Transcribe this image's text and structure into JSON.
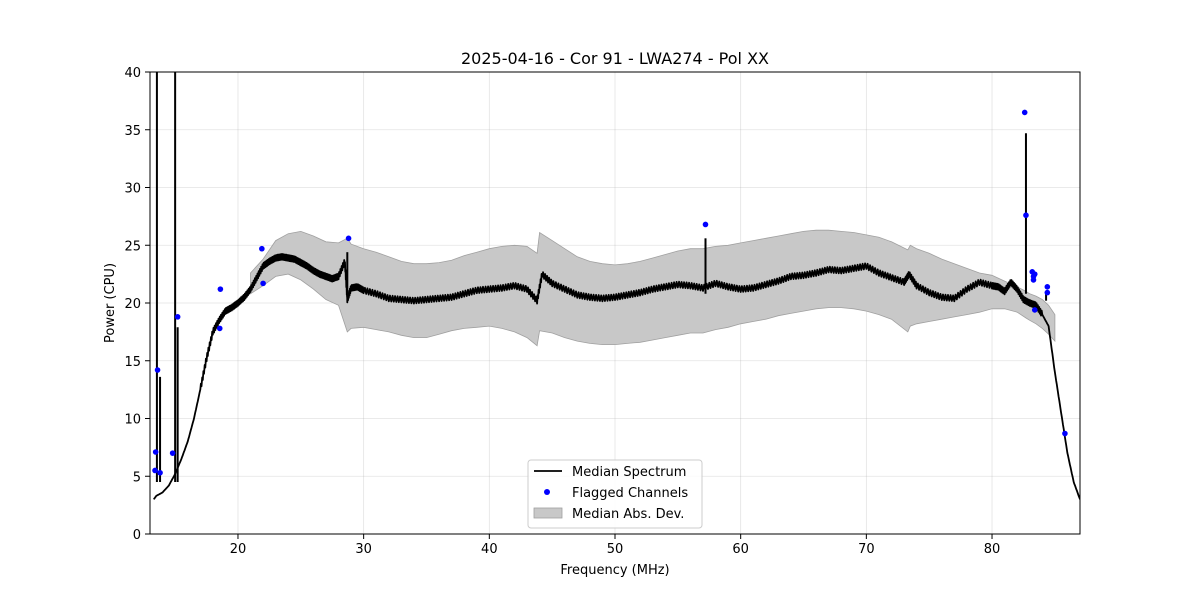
{
  "chart_data": {
    "type": "line",
    "title": "2025-04-16 - Cor 91 - LWA274 - Pol XX",
    "xlabel": "Frequency (MHz)",
    "ylabel": "Power (CPU)",
    "xlim": [
      13,
      87
    ],
    "ylim": [
      0,
      40
    ],
    "xticks": [
      20,
      30,
      40,
      50,
      60,
      70,
      80
    ],
    "yticks": [
      0,
      5,
      10,
      15,
      20,
      25,
      30,
      35,
      40
    ],
    "grid": true,
    "legend_position": "lower-center",
    "colors": {
      "median": "#000000",
      "flagged": "#0000ff",
      "mad_fill": "#c8c8c8",
      "mad_edge": "#a0a0a0"
    },
    "legend": [
      {
        "kind": "line",
        "label": "Median Spectrum"
      },
      {
        "kind": "dots",
        "label": "Flagged Channels"
      },
      {
        "kind": "band",
        "label": "Median Abs. Dev."
      }
    ],
    "median_spectrum": {
      "x": [
        13.3,
        13.5,
        14.0,
        14.5,
        15.0,
        15.5,
        16.0,
        16.5,
        17.0,
        17.5,
        18.0,
        18.5,
        19.0,
        19.5,
        20.0,
        20.5,
        21.0,
        21.5,
        22.0,
        22.5,
        23.0,
        23.5,
        24.0,
        24.5,
        25.0,
        25.5,
        26.0,
        26.5,
        27.0,
        27.5,
        28.0,
        28.5,
        28.7,
        29.0,
        29.5,
        30.0,
        31.0,
        32.0,
        33.0,
        34.0,
        35.0,
        36.0,
        37.0,
        38.0,
        39.0,
        40.0,
        41.0,
        42.0,
        43.0,
        43.8,
        44.2,
        45.0,
        46.0,
        47.0,
        48.0,
        49.0,
        50.0,
        51.0,
        52.0,
        53.0,
        54.0,
        55.0,
        56.0,
        57.0,
        58.0,
        59.0,
        60.0,
        61.0,
        62.0,
        63.0,
        64.0,
        65.0,
        66.0,
        67.0,
        68.0,
        69.0,
        70.0,
        71.0,
        72.0,
        73.0,
        73.4,
        74.0,
        75.0,
        76.0,
        77.0,
        78.0,
        79.0,
        80.0,
        80.5,
        81.0,
        81.5,
        82.0,
        82.5,
        83.0,
        83.5,
        84.0,
        84.5,
        85.0,
        85.5,
        86.0,
        86.5,
        87.0
      ],
      "y": [
        3.0,
        3.3,
        3.6,
        4.2,
        5.2,
        6.5,
        8.0,
        10.0,
        12.5,
        15.2,
        17.5,
        18.5,
        19.3,
        19.6,
        20.0,
        20.5,
        21.2,
        22.2,
        23.2,
        23.6,
        23.9,
        24.0,
        23.9,
        23.8,
        23.5,
        23.2,
        22.8,
        22.5,
        22.3,
        22.1,
        22.3,
        23.6,
        20.3,
        21.3,
        21.4,
        21.1,
        20.8,
        20.4,
        20.3,
        20.2,
        20.3,
        20.4,
        20.5,
        20.8,
        21.1,
        21.2,
        21.3,
        21.5,
        21.2,
        20.2,
        22.5,
        21.7,
        21.2,
        20.7,
        20.5,
        20.4,
        20.5,
        20.7,
        20.9,
        21.2,
        21.4,
        21.6,
        21.5,
        21.3,
        21.7,
        21.4,
        21.2,
        21.3,
        21.6,
        21.9,
        22.3,
        22.4,
        22.6,
        22.9,
        22.8,
        23.0,
        23.2,
        22.6,
        22.2,
        21.8,
        22.5,
        21.5,
        20.9,
        20.5,
        20.4,
        21.2,
        21.8,
        21.5,
        21.4,
        21.0,
        21.8,
        21.2,
        20.3,
        20.0,
        19.8,
        19.0,
        18.0,
        14.0,
        10.5,
        7.0,
        4.5,
        3.0
      ],
      "spikes": [
        [
          13.55,
          40
        ],
        [
          13.8,
          13.6
        ],
        [
          15.0,
          40
        ],
        [
          15.2,
          17.9
        ],
        [
          28.7,
          24.4
        ],
        [
          57.2,
          25.6
        ],
        [
          82.7,
          34.7
        ],
        [
          84.3,
          20.2
        ]
      ]
    },
    "mad_band": {
      "x": [
        21,
        22,
        23,
        24,
        25,
        26,
        27,
        28,
        28.7,
        29,
        30,
        31,
        32,
        33,
        34,
        35,
        36,
        37,
        38,
        39,
        40,
        41,
        42,
        43,
        43.8,
        44,
        45,
        46,
        47,
        48,
        49,
        50,
        51,
        52,
        53,
        54,
        55,
        56,
        57,
        58,
        59,
        60,
        61,
        62,
        63,
        64,
        65,
        66,
        67,
        68,
        69,
        70,
        71,
        72,
        73.3,
        73.5,
        74,
        75,
        76,
        77,
        78,
        79,
        80,
        81,
        82,
        82.7,
        83,
        83.5,
        84,
        84.5,
        85
      ],
      "upper": [
        22.6,
        23.8,
        25.4,
        26.0,
        26.2,
        25.8,
        25.3,
        25.2,
        25.6,
        25.1,
        24.7,
        24.4,
        24.0,
        23.6,
        23.4,
        23.4,
        23.5,
        23.7,
        24.1,
        24.4,
        24.7,
        24.9,
        25.0,
        24.9,
        24.3,
        26.1,
        25.4,
        24.7,
        24.0,
        23.6,
        23.4,
        23.3,
        23.4,
        23.6,
        23.9,
        24.2,
        24.5,
        24.7,
        24.7,
        24.9,
        25.0,
        25.2,
        25.4,
        25.6,
        25.8,
        26.0,
        26.2,
        26.3,
        26.3,
        26.2,
        26.1,
        25.9,
        25.7,
        25.3,
        24.6,
        25.0,
        24.7,
        24.3,
        23.8,
        23.4,
        23.0,
        22.6,
        22.4,
        21.9,
        21.4,
        21.0,
        20.8,
        20.6,
        20.3,
        19.8,
        19.0
      ],
      "lower": [
        20.8,
        21.5,
        22.3,
        22.5,
        22.0,
        21.2,
        20.3,
        19.8,
        17.5,
        17.8,
        17.9,
        17.7,
        17.5,
        17.2,
        17.0,
        17.0,
        17.3,
        17.6,
        17.8,
        17.9,
        18.0,
        17.8,
        17.5,
        17.0,
        16.3,
        17.6,
        17.4,
        17.0,
        16.7,
        16.5,
        16.4,
        16.4,
        16.5,
        16.6,
        16.8,
        17.0,
        17.2,
        17.4,
        17.4,
        17.7,
        17.9,
        18.2,
        18.4,
        18.6,
        18.9,
        19.1,
        19.3,
        19.5,
        19.6,
        19.6,
        19.5,
        19.3,
        19.0,
        18.6,
        17.5,
        18.0,
        18.2,
        18.4,
        18.6,
        18.8,
        19.0,
        19.2,
        19.5,
        19.5,
        19.2,
        18.7,
        18.5,
        18.2,
        17.8,
        17.3,
        16.7
      ]
    },
    "flagged_channels": {
      "x": [
        13.4,
        13.45,
        13.6,
        13.8,
        14.8,
        15.2,
        18.6,
        18.55,
        21.9,
        22.0,
        28.8,
        57.2,
        82.6,
        82.7,
        83.2,
        83.3,
        83.3,
        83.4,
        83.4,
        84.4,
        84.4,
        85.8
      ],
      "y": [
        5.5,
        7.1,
        14.2,
        5.3,
        7.0,
        18.8,
        21.2,
        17.8,
        24.7,
        21.7,
        25.6,
        26.8,
        36.5,
        27.6,
        22.7,
        22.3,
        22.0,
        19.4,
        22.5,
        21.4,
        20.9,
        8.7
      ]
    }
  }
}
